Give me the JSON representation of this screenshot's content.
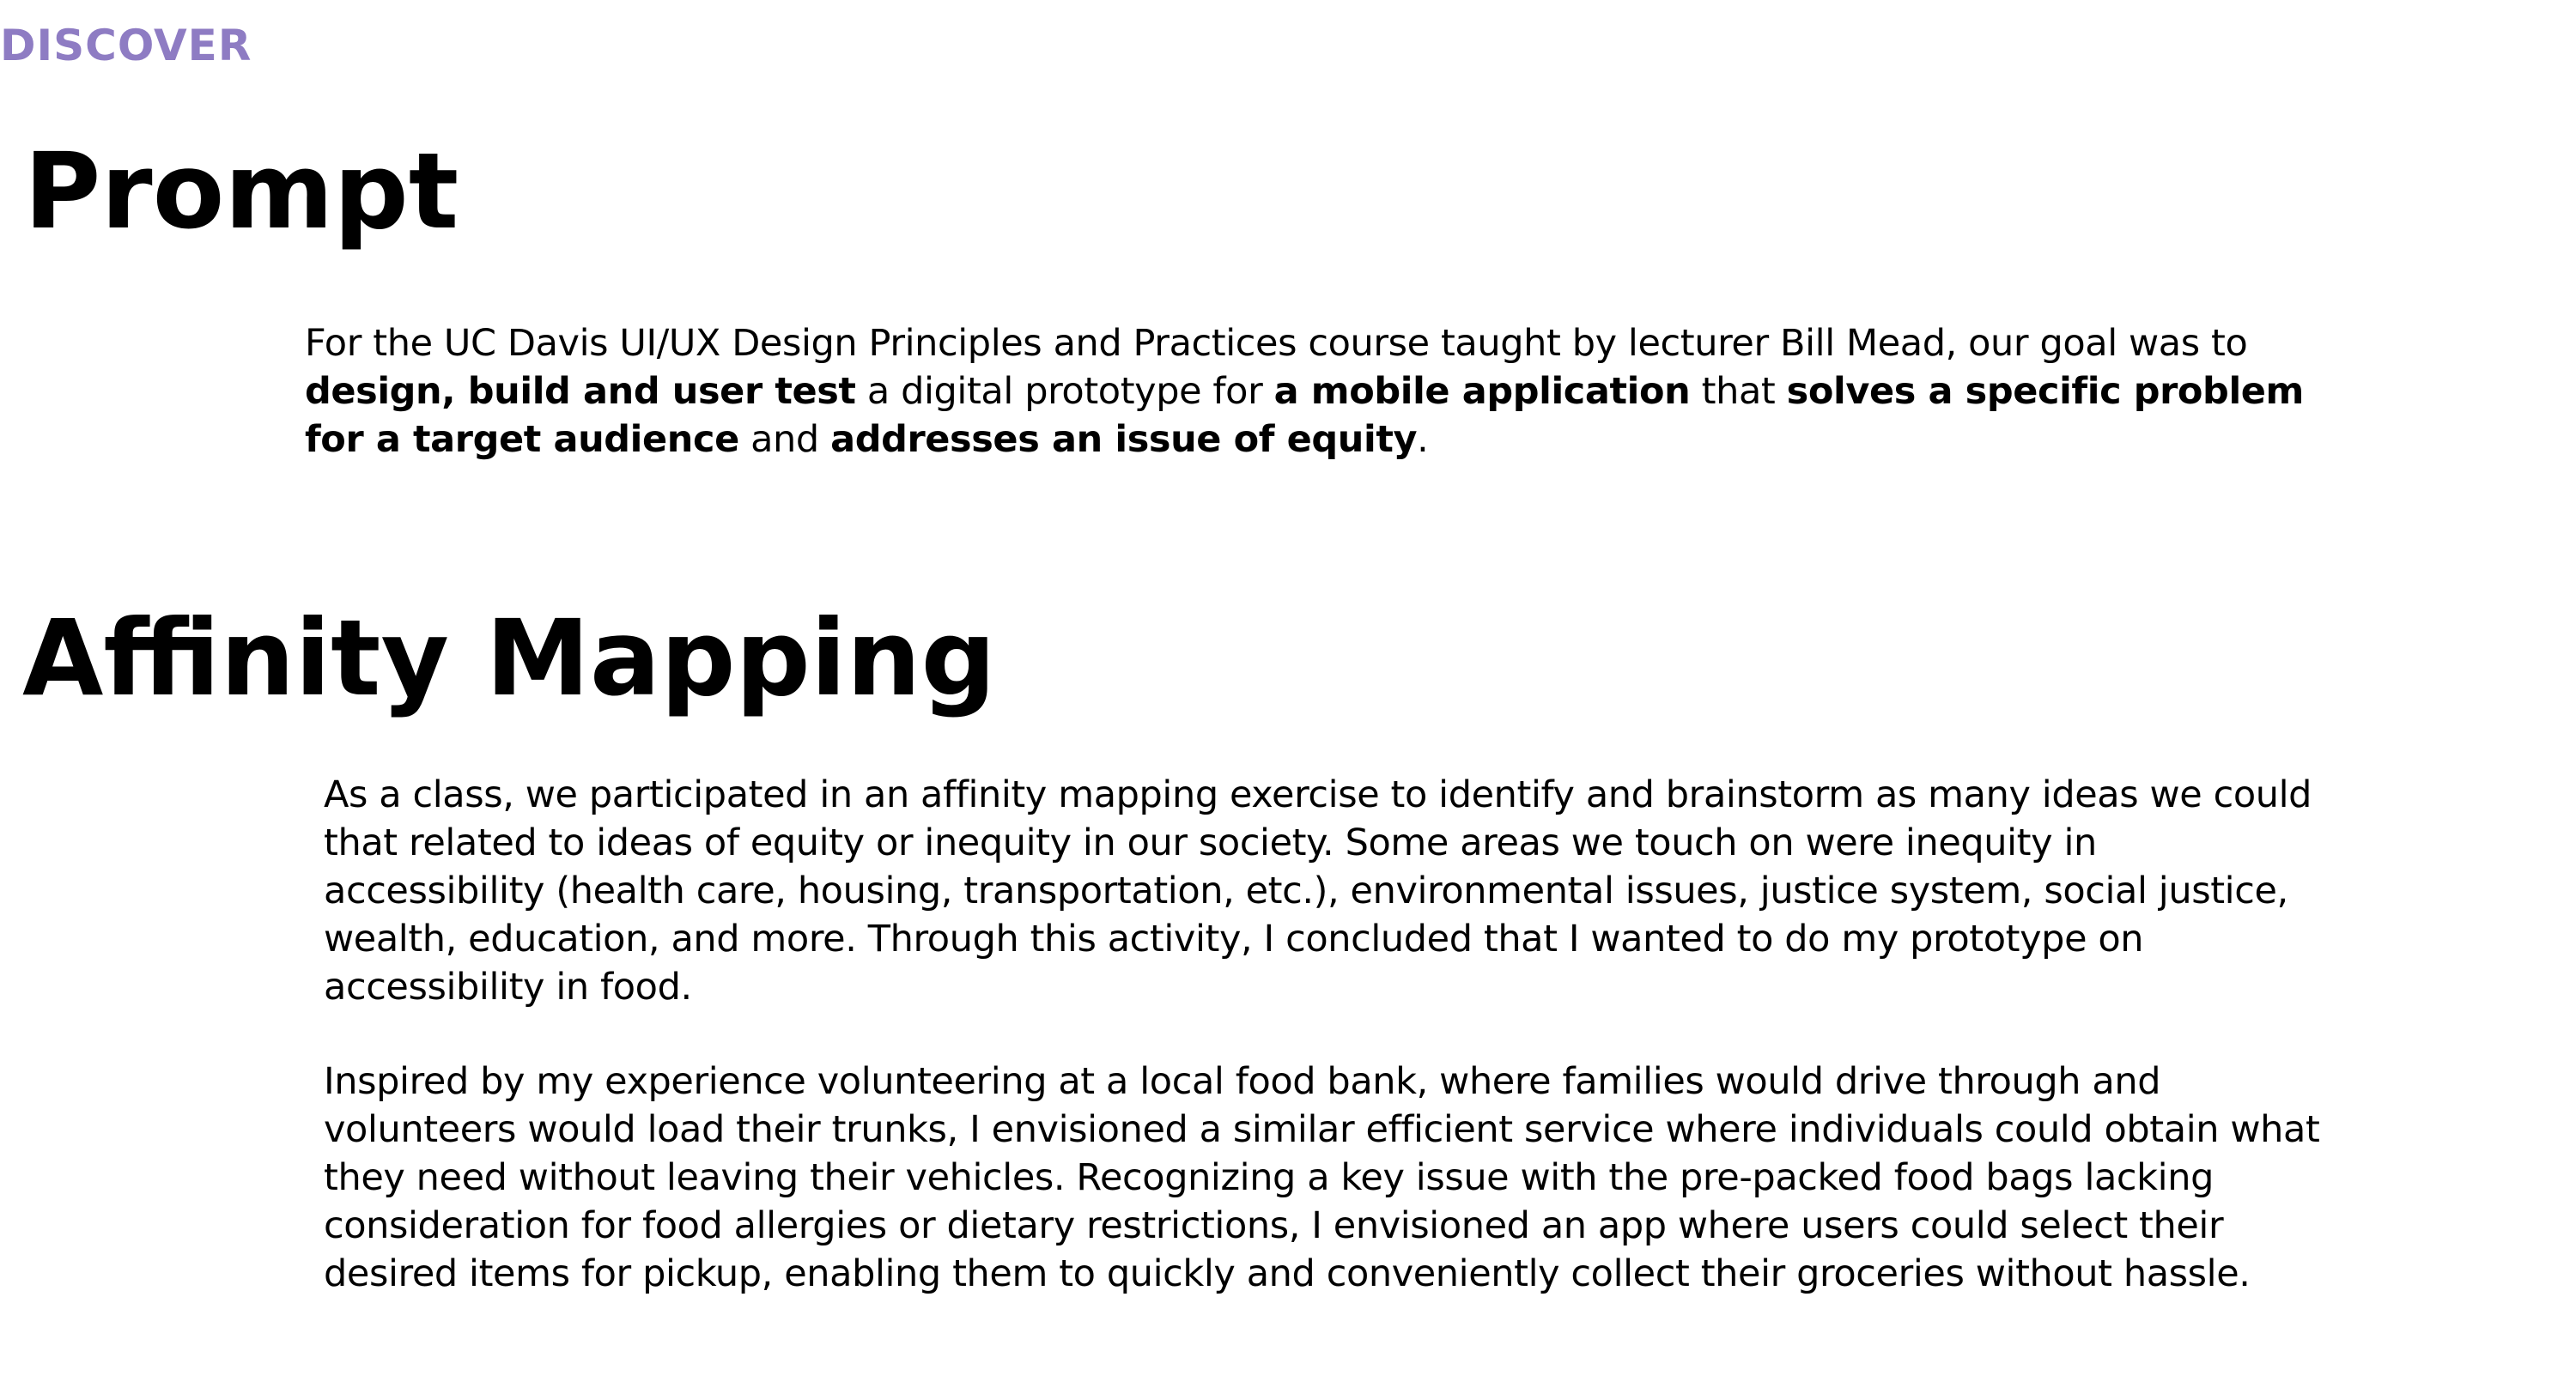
{
  "eyebrow": "DISCOVER",
  "colors": {
    "eyebrow": "#8e7cc3",
    "text": "#000000",
    "background": "#ffffff"
  },
  "prompt": {
    "heading": "Prompt",
    "segments": [
      {
        "text": "For the UC Davis UI/UX Design Principles and Practices course taught by lecturer Bill Mead, our goal was to ",
        "bold": false
      },
      {
        "text": "design, build and user test",
        "bold": true
      },
      {
        "text": " a digital prototype for ",
        "bold": false
      },
      {
        "text": "a mobile application",
        "bold": true
      },
      {
        "text": " that ",
        "bold": false
      },
      {
        "text": "solves a specific problem for a target audience",
        "bold": true
      },
      {
        "text": " and ",
        "bold": false
      },
      {
        "text": "addresses an issue of equity",
        "bold": true
      },
      {
        "text": ".",
        "bold": false
      }
    ]
  },
  "affinity": {
    "heading": "Affinity Mapping",
    "paragraph1": "As a class, we participated in an affinity mapping exercise to identify and brainstorm as many ideas we could that related to ideas of equity or inequity in our society. Some areas we touch on were inequity in accessibility (health care, housing, transportation, etc.), environmental issues, justice system, social justice, wealth, education, and more. Through this activity, I concluded that I wanted to do my prototype on accessibility in food.",
    "paragraph2": "Inspired by my experience volunteering at a local food bank, where families would drive through and volunteers would load their trunks, I envisioned a similar efficient service where individuals could obtain what they need without leaving their vehicles. Recognizing a key issue with the pre-packed food bags lacking consideration for food allergies or dietary restrictions, I envisioned an app where users could select their desired items for pickup, enabling them to quickly and conveniently collect their groceries without hassle."
  }
}
